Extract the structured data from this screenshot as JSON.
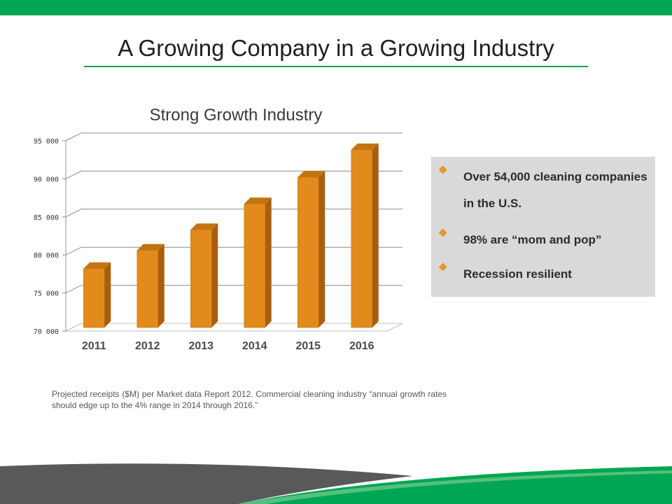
{
  "slide": {
    "title": "A Growing Company in a Growing Industry",
    "footnote": "Projected receipts ($M) per Market data Report 2012. Commercial cleaning industry “annual growth rates should edge up to the 4% range in 2014 through 2016.”"
  },
  "bullets": [
    {
      "mark": "❖",
      "text": "Over 54,000 cleaning companies in the U.S."
    },
    {
      "mark": "❖",
      "text": "98% are  “mom and pop”"
    },
    {
      "mark": "❖",
      "text": "Recession resilient"
    }
  ],
  "colors": {
    "accent_green": "#00a651",
    "bar_front": "#e38a1c",
    "bar_side": "#a85f0c",
    "bar_top": "#c27413",
    "bullet_mark": "#e8931c",
    "box_bg": "#d9d9d9",
    "dark_band": "#595959"
  },
  "chart_data": {
    "type": "bar",
    "title": "Strong Growth Industry",
    "categories": [
      "2011",
      "2012",
      "2013",
      "2014",
      "2015",
      "2016"
    ],
    "values": [
      78200,
      80600,
      83300,
      86700,
      90200,
      93800
    ],
    "ylim": [
      70000,
      95000
    ],
    "yticks": [
      70000,
      75000,
      80000,
      85000,
      90000,
      95000
    ],
    "ytick_labels": [
      "70 000",
      "75 000",
      "80 000",
      "85 000",
      "90 000",
      "95 000"
    ],
    "grid": true,
    "legend": "none",
    "style": "3d-column"
  }
}
